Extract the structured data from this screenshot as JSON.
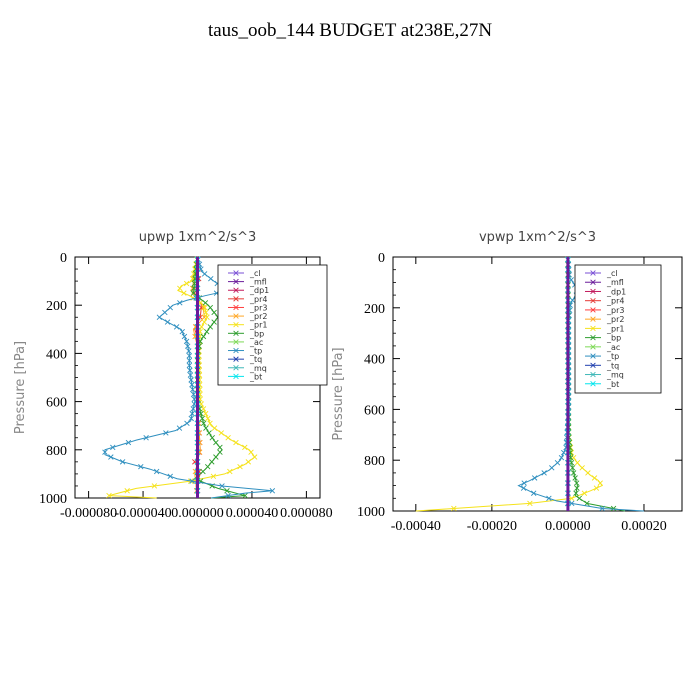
{
  "page": {
    "title": "taus_oob_144  BUDGET at238E,27N"
  },
  "colors": {
    "cl": "#7a4fd6",
    "mfl": "#6a1b9a",
    "dp1": "#c2185b",
    "pr4": "#e53935",
    "pr3": "#ff3d3d",
    "pr2": "#ffa726",
    "pr1": "#f5e21a",
    "bp": "#2e9e2e",
    "ac": "#7ed957",
    "tp": "#2f8fbf",
    "tq": "#1f3fae",
    "mq": "#3fb8b8",
    "bt": "#00e5ee"
  },
  "chart_data": [
    {
      "type": "line",
      "title": "upwp   1xm^2/s^3",
      "ylabel": "Pressure  [hPa]",
      "xlabel": "",
      "xlim": [
        -9e-05,
        9e-05
      ],
      "ylim": [
        1000,
        0
      ],
      "xticks": [
        -8e-05,
        -4e-05,
        0.0,
        4e-05,
        8e-05
      ],
      "xtick_labels": [
        "-0.000080",
        "-0.000040",
        "0.000000",
        "0.000040",
        "0.000080"
      ],
      "yticks": [
        0,
        200,
        400,
        600,
        800,
        1000
      ],
      "ytick_labels": [
        "0",
        "200",
        "400",
        "600",
        "800",
        "1000"
      ],
      "grid": false,
      "legend_position": "top-right",
      "legend": [
        "_cl",
        "_mfl",
        "_dp1",
        "_pr4",
        "_pr3",
        "_pr2",
        "_pr1",
        "_bp",
        "_ac",
        "_tp",
        "_tq",
        "_mq",
        "_bt"
      ],
      "series": [
        {
          "name": "_cl",
          "y": [
            0,
            200,
            400,
            600,
            800,
            1000
          ],
          "values": [
            0,
            0,
            0,
            0,
            0,
            0
          ]
        },
        {
          "name": "_mfl",
          "y": [
            0,
            200,
            400,
            600,
            800,
            1000
          ],
          "values": [
            0,
            0,
            0,
            0,
            0,
            0
          ]
        },
        {
          "name": "_dp1",
          "y": [
            0,
            200,
            400,
            600,
            800,
            1000
          ],
          "values": [
            0,
            0,
            0,
            0,
            0,
            0
          ]
        },
        {
          "name": "_pr4",
          "y": [
            0,
            100,
            150,
            200,
            250,
            300,
            350,
            400,
            500,
            600,
            700,
            800,
            850,
            900,
            950,
            1000
          ],
          "values": [
            0,
            1e-06,
            -2e-06,
            3e-06,
            2e-06,
            -2e-06,
            1e-06,
            0,
            0,
            0,
            1e-06,
            2e-06,
            -2e-06,
            2e-06,
            -1e-06,
            0
          ]
        },
        {
          "name": "_pr3",
          "y": [
            0,
            200,
            400,
            600,
            800,
            1000
          ],
          "values": [
            0,
            0,
            0,
            0,
            0,
            0
          ]
        },
        {
          "name": "_pr2",
          "y": [
            0,
            100,
            150,
            200,
            250,
            300,
            400,
            600,
            800,
            900,
            1000
          ],
          "values": [
            0,
            -3e-06,
            -4e-06,
            4e-06,
            5e-06,
            -3e-06,
            1e-06,
            0,
            2e-06,
            -2e-06,
            0
          ]
        },
        {
          "name": "_pr1",
          "y": [
            0,
            100,
            120,
            140,
            160,
            200,
            250,
            300,
            400,
            600,
            700,
            760,
            800,
            830,
            860,
            900,
            930,
            960,
            990,
            1000
          ],
          "values": [
            0,
            -4e-06,
            -1.2e-05,
            -1.4e-05,
            -6e-06,
            5e-06,
            7e-06,
            2e-06,
            1e-06,
            2e-06,
            1e-05,
            2.5e-05,
            3.8e-05,
            4.2e-05,
            3.5e-05,
            2e-05,
            -5e-06,
            -4.5e-05,
            -6.5e-05,
            -3e-05
          ]
        },
        {
          "name": "_bp",
          "y": [
            0,
            100,
            150,
            200,
            250,
            300,
            350,
            400,
            600,
            700,
            760,
            800,
            840,
            880,
            920,
            960,
            990,
            1000
          ],
          "values": [
            0,
            -2e-06,
            -3e-06,
            8e-06,
            1.5e-05,
            8e-06,
            2e-06,
            0,
            0,
            5e-06,
            1.2e-05,
            1.8e-05,
            1.2e-05,
            6e-06,
            -2e-06,
            1.5e-05,
            3.5e-05,
            1e-05
          ]
        },
        {
          "name": "_ac",
          "y": [
            0,
            200,
            400,
            600,
            800,
            1000
          ],
          "values": [
            0,
            0,
            0,
            0,
            0,
            0
          ]
        },
        {
          "name": "_tp",
          "y": [
            0,
            60,
            100,
            140,
            160,
            180,
            200,
            220,
            250,
            270,
            300,
            350,
            400,
            450,
            500,
            600,
            680,
            720,
            760,
            800,
            820,
            850,
            880,
            920,
            950,
            970,
            980,
            1000
          ],
          "values": [
            0,
            3e-06,
            1.2e-05,
            2.2e-05,
            6e-06,
            -8e-06,
            -1.8e-05,
            -2.2e-05,
            -2.8e-05,
            -2.2e-05,
            -1.2e-05,
            -8e-06,
            -6e-06,
            -6e-06,
            -5e-06,
            -2e-06,
            -5e-06,
            -1.6e-05,
            -4.5e-05,
            -6.8e-05,
            -6.8e-05,
            -5.5e-05,
            -3.5e-05,
            -1.5e-05,
            1.8e-05,
            5.5e-05,
            3.5e-05,
            1e-05
          ]
        },
        {
          "name": "_tq",
          "y": [
            0,
            200,
            400,
            600,
            800,
            1000
          ],
          "values": [
            0,
            0,
            0,
            0,
            0,
            0
          ]
        },
        {
          "name": "_mq",
          "y": [
            0,
            200,
            400,
            600,
            800,
            1000
          ],
          "values": [
            0,
            0,
            0,
            0,
            0,
            0
          ]
        },
        {
          "name": "_bt",
          "y": [
            0,
            200,
            400,
            600,
            800,
            1000
          ],
          "values": [
            0,
            0,
            0,
            0,
            0,
            0
          ]
        }
      ]
    },
    {
      "type": "line",
      "title": "vpwp   1xm^2/s^3",
      "ylabel": "Pressure  [hPa]",
      "xlabel": "",
      "xlim": [
        -0.00046,
        0.0003
      ],
      "ylim": [
        1000,
        0
      ],
      "xticks": [
        -0.0004,
        -0.0002,
        0.0,
        0.0002
      ],
      "xtick_labels": [
        "-0.00040",
        "-0.00020",
        "0.00000",
        "0.00020"
      ],
      "yticks": [
        0,
        200,
        400,
        600,
        800,
        1000
      ],
      "ytick_labels": [
        "0",
        "200",
        "400",
        "600",
        "800",
        "1000"
      ],
      "grid": false,
      "legend_position": "top-right",
      "legend": [
        "_cl",
        "_mfl",
        "_dp1",
        "_pr4",
        "_pr3",
        "_pr2",
        "_pr1",
        "_bp",
        "_ac",
        "_tp",
        "_tq",
        "_mq",
        "_bt"
      ],
      "series": [
        {
          "name": "_cl",
          "y": [
            0,
            200,
            400,
            600,
            800,
            1000
          ],
          "values": [
            0,
            0,
            0,
            0,
            0,
            0
          ]
        },
        {
          "name": "_mfl",
          "y": [
            0,
            200,
            400,
            600,
            800,
            1000
          ],
          "values": [
            0,
            0,
            0,
            0,
            0,
            0
          ]
        },
        {
          "name": "_dp1",
          "y": [
            0,
            200,
            400,
            600,
            800,
            1000
          ],
          "values": [
            0,
            0,
            0,
            0,
            0,
            0
          ]
        },
        {
          "name": "_pr4",
          "y": [
            0,
            200,
            400,
            600,
            800,
            1000
          ],
          "values": [
            0,
            0,
            0,
            0,
            0,
            0
          ]
        },
        {
          "name": "_pr3",
          "y": [
            0,
            200,
            400,
            600,
            800,
            1000
          ],
          "values": [
            0,
            0,
            0,
            0,
            0,
            0
          ]
        },
        {
          "name": "_pr2",
          "y": [
            0,
            200,
            400,
            600,
            800,
            1000
          ],
          "values": [
            0,
            0,
            0,
            0,
            0,
            0
          ]
        },
        {
          "name": "_pr1",
          "y": [
            0,
            700,
            780,
            820,
            860,
            880,
            900,
            920,
            950,
            970,
            990,
            1000
          ],
          "values": [
            0,
            2e-06,
            1e-05,
            3e-05,
            6e-05,
            8e-05,
            9e-05,
            6e-05,
            1e-05,
            -0.0001,
            -0.0003,
            -0.0004
          ]
        },
        {
          "name": "_bp",
          "y": [
            0,
            700,
            800,
            850,
            900,
            940,
            970,
            990,
            1000
          ],
          "values": [
            0,
            2e-06,
            8e-06,
            1.5e-05,
            2.5e-05,
            2e-05,
            5e-05,
            0.00012,
            0.00015
          ]
        },
        {
          "name": "_ac",
          "y": [
            0,
            200,
            400,
            600,
            800,
            1000
          ],
          "values": [
            0,
            0,
            0,
            0,
            0,
            0
          ]
        },
        {
          "name": "_tp",
          "y": [
            0,
            80,
            110,
            130,
            150,
            170,
            190,
            250,
            600,
            750,
            800,
            840,
            880,
            900,
            930,
            960,
            990,
            1000
          ],
          "values": [
            0,
            4e-06,
            1.8e-05,
            2.8e-05,
            2.2e-05,
            1.2e-05,
            6e-06,
            2e-06,
            2e-06,
            -5e-06,
            -2e-05,
            -5e-05,
            -0.0001,
            -0.00013,
            -9e-05,
            -3e-05,
            9e-05,
            0.0002
          ]
        },
        {
          "name": "_tq",
          "y": [
            0,
            200,
            400,
            600,
            800,
            1000
          ],
          "values": [
            0,
            0,
            0,
            0,
            0,
            0
          ]
        },
        {
          "name": "_mq",
          "y": [
            0,
            200,
            400,
            600,
            800,
            1000
          ],
          "values": [
            0,
            0,
            0,
            0,
            0,
            0
          ]
        },
        {
          "name": "_bt",
          "y": [
            0,
            200,
            400,
            600,
            800,
            1000
          ],
          "values": [
            0,
            0,
            0,
            0,
            0,
            0
          ]
        }
      ]
    }
  ]
}
